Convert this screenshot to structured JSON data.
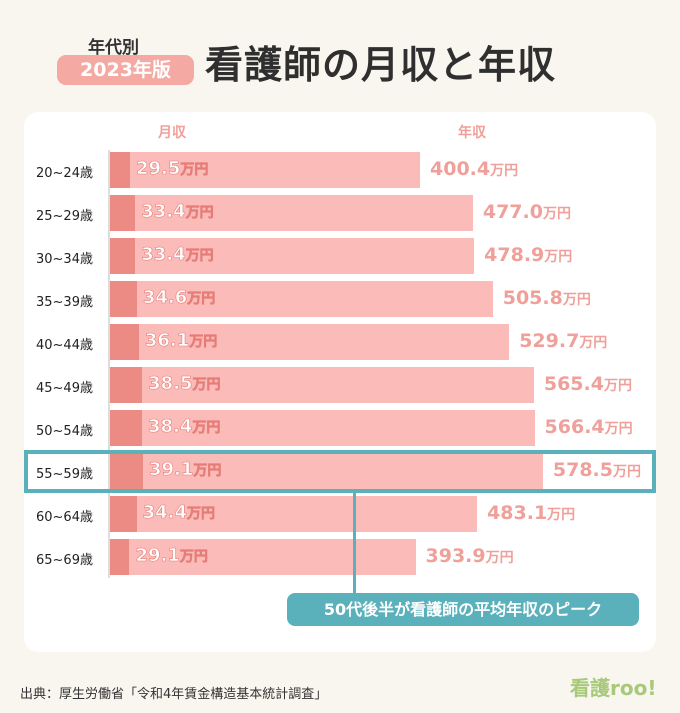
{
  "header": {
    "subtitle": "年代別",
    "badge": "2023年版",
    "title": "看護師の月収と年収"
  },
  "chart_data": {
    "type": "bar",
    "columns": {
      "monthly": "月収",
      "annual": "年収"
    },
    "unit": "万円",
    "categories": [
      "20~24歳",
      "25~29歳",
      "30~34歳",
      "35~39歳",
      "40~44歳",
      "45~49歳",
      "50~54歳",
      "55~59歳",
      "60~64歳",
      "65~69歳"
    ],
    "series": [
      {
        "name": "月収",
        "values": [
          29.5,
          33.4,
          33.4,
          34.6,
          36.1,
          38.5,
          38.4,
          39.1,
          34.4,
          29.1
        ]
      },
      {
        "name": "年収",
        "values": [
          400.4,
          477.0,
          478.9,
          505.8,
          529.7,
          565.4,
          566.4,
          578.5,
          483.1,
          393.9
        ]
      }
    ],
    "highlight": "55~59歳",
    "annotation": "50代後半が看護師の平均年収のピーク"
  },
  "footer": {
    "source": "出典：厚生労働省「令和4年賃金構造基本統計調査」",
    "logo": "看護roo!"
  },
  "colors": {
    "bar": "#fbbcb9",
    "monthly": "#ec8a84",
    "annual_text": "#f0a09a",
    "accent": "#5ab1bc",
    "background": "#f8f6ee"
  }
}
